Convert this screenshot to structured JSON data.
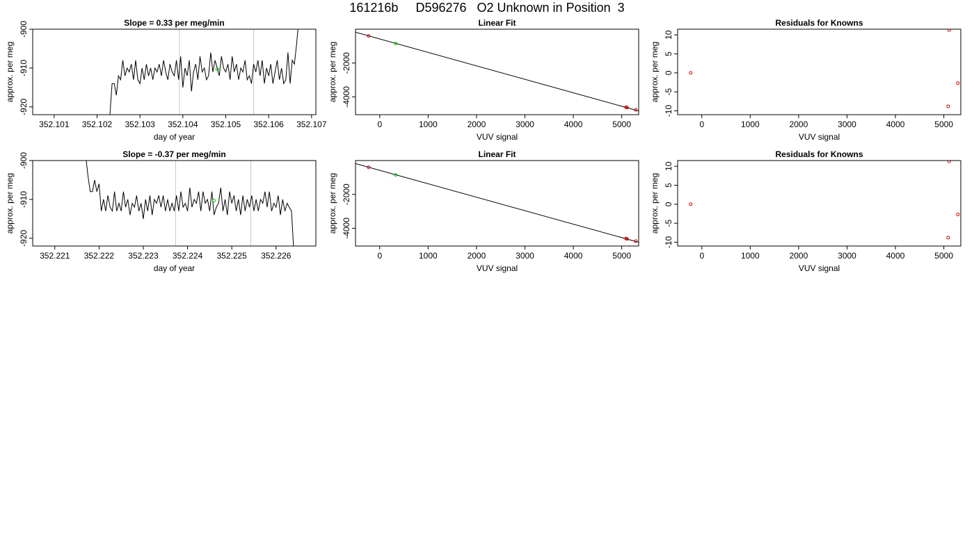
{
  "page_title": "161216b     D596276   O2 Unknown in Position  3",
  "chart_data": [
    {
      "id": "timeseries-1",
      "type": "line",
      "title": "Slope =  0.33  per meg/min",
      "xlabel": "day of year",
      "ylabel": "approx. per meg",
      "xlim": [
        352.1005,
        352.1071
      ],
      "ylim": [
        -922.0,
        -900.0
      ],
      "xticks": [
        352.101,
        352.102,
        352.103,
        352.104,
        352.105,
        352.106,
        352.107
      ],
      "xtick_labels": [
        "352.101",
        "352.102",
        "352.103",
        "352.104",
        "352.105",
        "352.106",
        "352.107"
      ],
      "yticks": [
        -920,
        -910,
        -900
      ],
      "ytick_labels": [
        "-920",
        "-910",
        "-900"
      ],
      "vlines": [
        352.10392,
        352.10565
      ],
      "marker": {
        "x": 352.1048,
        "y": -910.3,
        "color": "#00cc00"
      },
      "series": [
        {
          "color": "#000000",
          "x": [
            352.1023,
            352.10235,
            352.1024,
            352.10245,
            352.1025,
            352.10255,
            352.1026,
            352.10265,
            352.1027,
            352.10275,
            352.1028,
            352.10285,
            352.1029,
            352.10295,
            352.103,
            352.10305,
            352.1031,
            352.10315,
            352.1032,
            352.10325,
            352.1033,
            352.10335,
            352.1034,
            352.10345,
            352.1035,
            352.10355,
            352.1036,
            352.10365,
            352.1037,
            352.10375,
            352.1038,
            352.10385,
            352.1039,
            352.10395,
            352.104,
            352.10405,
            352.1041,
            352.10415,
            352.1042,
            352.10425,
            352.1043,
            352.10435,
            352.1044,
            352.10445,
            352.1045,
            352.10455,
            352.1046,
            352.10465,
            352.1047,
            352.10475,
            352.1048,
            352.10485,
            352.1049,
            352.10495,
            352.105,
            352.10505,
            352.1051,
            352.10515,
            352.1052,
            352.10525,
            352.1053,
            352.10535,
            352.1054,
            352.10545,
            352.1055,
            352.10555,
            352.1056,
            352.10565,
            352.1057,
            352.10575,
            352.1058,
            352.10585,
            352.1059,
            352.10595,
            352.106,
            352.10605,
            352.1061,
            352.10615,
            352.1062,
            352.10625,
            352.1063,
            352.10635,
            352.1064,
            352.10645,
            352.1065,
            352.10655,
            352.1066,
            352.10665,
            352.1067
          ],
          "y": [
            -922,
            -914,
            -914,
            -917,
            -912,
            -913,
            -908,
            -912,
            -910,
            -911,
            -909,
            -913,
            -908,
            -913,
            -914,
            -910,
            -913,
            -909,
            -912,
            -910,
            -913,
            -910,
            -911,
            -909,
            -912,
            -908,
            -911,
            -913,
            -909,
            -911,
            -912,
            -908,
            -913,
            -907,
            -915,
            -910,
            -912,
            -908,
            -916,
            -911,
            -909,
            -913,
            -907,
            -911,
            -910,
            -913,
            -912,
            -906,
            -911,
            -908,
            -910,
            -912,
            -907,
            -910,
            -911,
            -909,
            -913,
            -907,
            -911,
            -909,
            -913,
            -910,
            -911,
            -908,
            -913,
            -912,
            -914,
            -909,
            -911,
            -908,
            -912,
            -908,
            -914,
            -910,
            -912,
            -909,
            -914,
            -911,
            -908,
            -913,
            -910,
            -914,
            -913,
            -906,
            -914,
            -908,
            -909,
            -904,
            -898
          ]
        }
      ]
    },
    {
      "id": "linearfit-1",
      "type": "scatter",
      "title": "Linear Fit",
      "xlabel": "VUV signal",
      "ylabel": "approx. per meg",
      "xlim": [
        -500,
        5350
      ],
      "ylim": [
        -5050,
        0
      ],
      "xticks": [
        0,
        1000,
        2000,
        3000,
        4000,
        5000
      ],
      "xtick_labels": [
        "0",
        "1000",
        "2000",
        "3000",
        "4000",
        "5000"
      ],
      "yticks": [
        -4000,
        -2000
      ],
      "ytick_labels": [
        "-4000",
        "-2000"
      ],
      "fit_line": {
        "x": [
          -500,
          5350
        ],
        "y": [
          -180,
          -4830
        ]
      },
      "series": [
        {
          "name": "",
          "color": "#cc0000",
          "x": [
            -230,
            5090,
            5110,
            5290
          ],
          "y": [
            -400,
            -4610,
            -4630,
            -4760
          ]
        },
        {
          "name": "",
          "color": "#00cc00",
          "x": [
            330
          ],
          "y": [
            -850
          ]
        }
      ]
    },
    {
      "id": "residuals-1",
      "type": "scatter",
      "title": "Residuals for Knowns",
      "xlabel": "VUV signal",
      "ylabel": "approx. per meg",
      "xlim": [
        -500,
        5350
      ],
      "ylim": [
        -11.0,
        11.5
      ],
      "xticks": [
        0,
        1000,
        2000,
        3000,
        4000,
        5000
      ],
      "xtick_labels": [
        "0",
        "1000",
        "2000",
        "3000",
        "4000",
        "5000"
      ],
      "yticks": [
        -10,
        -5,
        0,
        5,
        10
      ],
      "ytick_labels": [
        "-10",
        "-5",
        "0",
        "5",
        "10"
      ],
      "series": [
        {
          "name": "",
          "color": "#cc0000",
          "x": [
            -230,
            5110,
            5090,
            5290
          ],
          "y": [
            0,
            11.3,
            -8.8,
            -2.7
          ]
        }
      ]
    },
    {
      "id": "timeseries-2",
      "type": "line",
      "title": "Slope =  -0.37  per meg/min",
      "xlabel": "day of year",
      "ylabel": "approx. per meg",
      "xlim": [
        352.2205,
        352.2269
      ],
      "ylim": [
        -922.0,
        -900.0
      ],
      "xticks": [
        352.221,
        352.222,
        352.223,
        352.224,
        352.225,
        352.226
      ],
      "xtick_labels": [
        "352.221",
        "352.222",
        "352.223",
        "352.224",
        "352.225",
        "352.226"
      ],
      "yticks": [
        -920,
        -910,
        -900
      ],
      "ytick_labels": [
        "-920",
        "-910",
        "-900"
      ],
      "vlines": [
        352.22373,
        352.22543
      ],
      "marker": {
        "x": 352.2246,
        "y": -910.3,
        "color": "#00cc00"
      },
      "series": [
        {
          "color": "#000000",
          "x": [
            352.2217,
            352.22175,
            352.2218,
            352.22185,
            352.2219,
            352.22195,
            352.222,
            352.22205,
            352.2221,
            352.22215,
            352.2222,
            352.22225,
            352.2223,
            352.22235,
            352.2224,
            352.22245,
            352.2225,
            352.22255,
            352.2226,
            352.22265,
            352.2227,
            352.22275,
            352.2228,
            352.22285,
            352.2229,
            352.22295,
            352.223,
            352.22305,
            352.2231,
            352.22315,
            352.2232,
            352.22325,
            352.2233,
            352.22335,
            352.2234,
            352.22345,
            352.2235,
            352.22355,
            352.2236,
            352.22365,
            352.2237,
            352.22375,
            352.2238,
            352.22385,
            352.2239,
            352.22395,
            352.224,
            352.22405,
            352.2241,
            352.22415,
            352.2242,
            352.22425,
            352.2243,
            352.22435,
            352.2244,
            352.22445,
            352.2245,
            352.22455,
            352.2246,
            352.22465,
            352.2247,
            352.22475,
            352.2248,
            352.22485,
            352.2249,
            352.22495,
            352.225,
            352.22505,
            352.2251,
            352.22515,
            352.2252,
            352.22525,
            352.2253,
            352.22535,
            352.2254,
            352.22545,
            352.2255,
            352.22555,
            352.2256,
            352.22565,
            352.2257,
            352.22575,
            352.2258,
            352.22585,
            352.2259,
            352.22595,
            352.226,
            352.22605,
            352.2261,
            352.22615,
            352.2262,
            352.22625,
            352.2263,
            352.22635,
            352.2264
          ],
          "y": [
            -899,
            -904,
            -908,
            -908,
            -905,
            -908,
            -906,
            -913,
            -910,
            -913,
            -909,
            -912,
            -913,
            -908,
            -913,
            -911,
            -913,
            -908,
            -912,
            -910,
            -914,
            -911,
            -912,
            -909,
            -913,
            -911,
            -915,
            -910,
            -913,
            -909,
            -914,
            -910,
            -911,
            -909,
            -912,
            -909,
            -913,
            -910,
            -913,
            -911,
            -913,
            -909,
            -913,
            -908,
            -912,
            -911,
            -913,
            -907,
            -912,
            -910,
            -911,
            -908,
            -913,
            -908,
            -911,
            -910,
            -913,
            -908,
            -914,
            -912,
            -911,
            -907,
            -913,
            -910,
            -914,
            -908,
            -911,
            -909,
            -913,
            -910,
            -914,
            -909,
            -913,
            -910,
            -912,
            -909,
            -913,
            -910,
            -913,
            -910,
            -911,
            -908,
            -912,
            -908,
            -913,
            -911,
            -912,
            -909,
            -914,
            -910,
            -913,
            -911,
            -912,
            -913,
            -923
          ]
        }
      ]
    },
    {
      "id": "linearfit-2",
      "type": "scatter",
      "title": "Linear Fit",
      "xlabel": "VUV signal",
      "ylabel": "approx. per meg",
      "xlim": [
        -500,
        5350
      ],
      "ylim": [
        -5050,
        0
      ],
      "xticks": [
        0,
        1000,
        2000,
        3000,
        4000,
        5000
      ],
      "xtick_labels": [
        "0",
        "1000",
        "2000",
        "3000",
        "4000",
        "5000"
      ],
      "yticks": [
        -4000,
        -2000
      ],
      "ytick_labels": [
        "-4000",
        "-2000"
      ],
      "fit_line": {
        "x": [
          -500,
          5350
        ],
        "y": [
          -180,
          -4830
        ]
      },
      "series": [
        {
          "name": "",
          "color": "#cc0000",
          "x": [
            -230,
            5090,
            5110,
            5290
          ],
          "y": [
            -400,
            -4610,
            -4630,
            -4760
          ]
        },
        {
          "name": "",
          "color": "#00cc00",
          "x": [
            330
          ],
          "y": [
            -850
          ]
        }
      ]
    },
    {
      "id": "residuals-2",
      "type": "scatter",
      "title": "Residuals for Knowns",
      "xlabel": "VUV signal",
      "ylabel": "approx. per meg",
      "xlim": [
        -500,
        5350
      ],
      "ylim": [
        -11.0,
        11.5
      ],
      "xticks": [
        0,
        1000,
        2000,
        3000,
        4000,
        5000
      ],
      "xtick_labels": [
        "0",
        "1000",
        "2000",
        "3000",
        "4000",
        "5000"
      ],
      "yticks": [
        -10,
        -5,
        0,
        5,
        10
      ],
      "ytick_labels": [
        "-10",
        "-5",
        "0",
        "5",
        "10"
      ],
      "series": [
        {
          "name": "",
          "color": "#cc0000",
          "x": [
            -230,
            5110,
            5090,
            5290
          ],
          "y": [
            0,
            11.3,
            -8.8,
            -2.7
          ]
        }
      ]
    }
  ]
}
